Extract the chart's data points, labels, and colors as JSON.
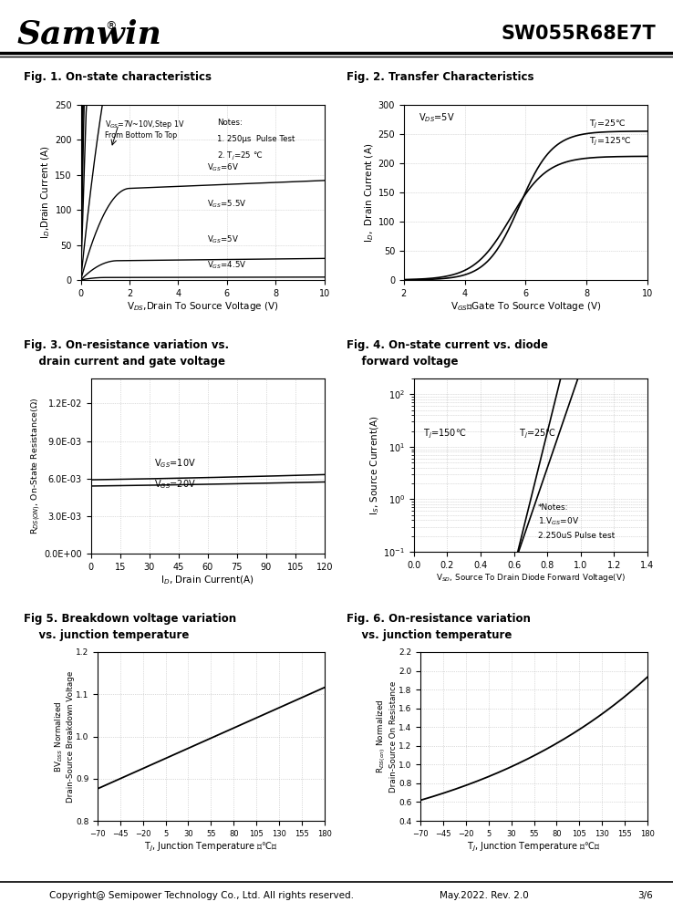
{
  "title_right": "SW055R68E7T",
  "fig1_title": "Fig. 1. On-state characteristics",
  "fig2_title": "Fig. 2. Transfer Characteristics",
  "fig3_title_l1": "Fig. 3. On-resistance variation vs.",
  "fig3_title_l2": "    drain current and gate voltage",
  "fig4_title_l1": "Fig. 4. On-state current vs. diode",
  "fig4_title_l2": "    forward voltage",
  "fig5_title_l1": "Fig 5. Breakdown voltage variation",
  "fig5_title_l2": "    vs. junction temperature",
  "fig6_title_l1": "Fig. 6. On-resistance variation",
  "fig6_title_l2": "    vs. junction temperature",
  "footer": "Copyright@ Semipower Technology Co., Ltd. All rights reserved.",
  "footer_date": "May.2022. Rev. 2.0",
  "footer_page": "3/6",
  "bg_color": "#ffffff",
  "grid_color": "#bbbbbb",
  "line_color": "#000000"
}
